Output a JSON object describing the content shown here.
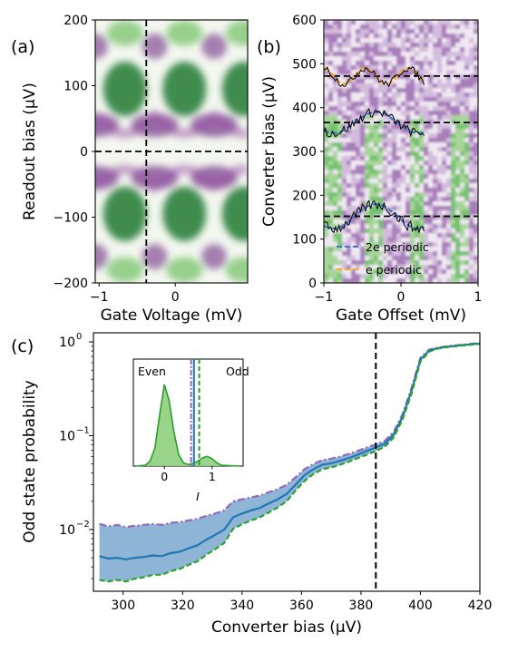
{
  "chart_data": [
    {
      "panel": "(a)",
      "type": "heatmap",
      "title": "",
      "xlabel": "Gate Voltage (mV)",
      "ylabel": "Readout bias (μV)",
      "xlim": [
        -1.05,
        0.95
      ],
      "ylim": [
        -200,
        200
      ],
      "xticks": [
        {
          "v": -1,
          "t": "−1"
        },
        {
          "v": 0,
          "t": "0"
        }
      ],
      "yticks": [
        {
          "v": 200,
          "t": "200"
        },
        {
          "v": 100,
          "t": "100"
        },
        {
          "v": 0,
          "t": "0"
        },
        {
          "v": -100,
          "t": "−100"
        },
        {
          "v": -200,
          "t": "−200"
        }
      ],
      "vline": -0.38,
      "hline": 0,
      "colormap": "PRGn",
      "colors": {
        "purple": "#8e4a9e",
        "green": "#2e8b3a",
        "line": "#000000"
      }
    },
    {
      "panel": "(b)",
      "type": "heatmap",
      "title": "",
      "xlabel": "Gate Offset (mV)",
      "ylabel": "Converter bias (μV)",
      "xlim": [
        -1,
        1
      ],
      "ylim": [
        0,
        600
      ],
      "xticks": [
        {
          "v": -1,
          "t": "−1"
        },
        {
          "v": 0,
          "t": "0"
        },
        {
          "v": 1,
          "t": "1"
        }
      ],
      "yticks": [
        {
          "v": 600,
          "t": "600"
        },
        {
          "v": 500,
          "t": "500"
        },
        {
          "v": 400,
          "t": "400"
        },
        {
          "v": 300,
          "t": "300"
        },
        {
          "v": 200,
          "t": "200"
        },
        {
          "v": 100,
          "t": "100"
        },
        {
          "v": 0,
          "t": "0"
        }
      ],
      "hlines": [
        472,
        366,
        152
      ],
      "data_extent_x": [
        -1,
        0.3
      ],
      "traces": [
        {
          "center": 472,
          "amplitude": 18,
          "fit": "e periodic"
        },
        {
          "center": 366,
          "amplitude": 24,
          "fit": "2e periodic"
        },
        {
          "center": 152,
          "amplitude": 28,
          "fit": "2e periodic"
        }
      ],
      "legend": [
        {
          "name": "2e periodic",
          "color": "#3a76c4",
          "style": "dashed"
        },
        {
          "name": "e periodic",
          "color": "#f5a623",
          "style": "dashed"
        }
      ],
      "legend_position": "lower-right",
      "colormap": "PRGn"
    },
    {
      "panel": "(c)",
      "type": "line",
      "title": "",
      "xlabel": "Converter bias (μV)",
      "ylabel": "Odd state probability",
      "xscale": "linear",
      "yscale": "log",
      "xlim": [
        290,
        420
      ],
      "ylim": [
        0.0022,
        1.25
      ],
      "xticks": [
        300,
        320,
        340,
        360,
        380,
        400,
        420
      ],
      "yticks": [
        {
          "v": 1,
          "t": "10",
          "e": "0"
        },
        {
          "v": 0.1,
          "t": "10",
          "e": "−1"
        },
        {
          "v": 0.01,
          "t": "10",
          "e": "−2"
        }
      ],
      "vline": 385,
      "x": [
        292,
        295,
        298,
        301,
        304,
        307,
        310,
        313,
        316,
        319,
        322,
        325,
        328,
        331,
        334,
        337,
        340,
        343,
        346,
        349,
        352,
        355,
        358,
        361,
        364,
        367,
        370,
        373,
        376,
        379,
        382,
        385,
        388,
        391,
        394,
        397,
        400,
        403,
        406,
        409,
        412,
        415,
        418,
        420
      ],
      "series": [
        {
          "role": "upper",
          "color": "#9467bd",
          "style": "dashdot",
          "values": [
            0.0115,
            0.0108,
            0.0112,
            0.0106,
            0.011,
            0.0112,
            0.0115,
            0.0112,
            0.0118,
            0.012,
            0.0125,
            0.013,
            0.014,
            0.0148,
            0.016,
            0.02,
            0.021,
            0.022,
            0.023,
            0.025,
            0.027,
            0.03,
            0.036,
            0.044,
            0.05,
            0.055,
            0.057,
            0.06,
            0.064,
            0.069,
            0.075,
            0.081,
            0.088,
            0.11,
            0.17,
            0.32,
            0.68,
            0.83,
            0.87,
            0.9,
            0.92,
            0.94,
            0.96,
            0.97
          ]
        },
        {
          "role": "mean",
          "color": "#1f77b4",
          "style": "solid",
          "values": [
            0.0052,
            0.0049,
            0.005,
            0.0048,
            0.005,
            0.0051,
            0.0053,
            0.0052,
            0.0056,
            0.0058,
            0.0063,
            0.0068,
            0.0078,
            0.0088,
            0.01,
            0.0135,
            0.0148,
            0.016,
            0.017,
            0.019,
            0.021,
            0.024,
            0.03,
            0.038,
            0.044,
            0.049,
            0.051,
            0.054,
            0.058,
            0.063,
            0.069,
            0.075,
            0.082,
            0.103,
            0.16,
            0.3,
            0.65,
            0.81,
            0.86,
            0.89,
            0.91,
            0.93,
            0.95,
            0.96
          ]
        },
        {
          "role": "lower",
          "color": "#2ca02c",
          "style": "dashed",
          "values": [
            0.0029,
            0.0028,
            0.0029,
            0.0028,
            0.003,
            0.0031,
            0.0033,
            0.0033,
            0.0036,
            0.0038,
            0.0042,
            0.0046,
            0.0054,
            0.0062,
            0.0072,
            0.0102,
            0.0114,
            0.0125,
            0.0135,
            0.0152,
            0.0172,
            0.02,
            0.026,
            0.033,
            0.039,
            0.044,
            0.046,
            0.049,
            0.053,
            0.058,
            0.063,
            0.069,
            0.076,
            0.096,
            0.15,
            0.28,
            0.62,
            0.79,
            0.85,
            0.88,
            0.9,
            0.92,
            0.94,
            0.95
          ]
        }
      ],
      "band_color": "#7aa7cf",
      "inset": {
        "type": "area",
        "xlabel": "I",
        "ylabel": "",
        "xlim": [
          -0.65,
          1.65
        ],
        "xticks": [
          {
            "v": 0,
            "t": "0"
          },
          {
            "v": 1,
            "t": "1"
          }
        ],
        "annotations": [
          "Even",
          "Odd"
        ],
        "x": [
          -0.6,
          -0.4,
          -0.3,
          -0.2,
          -0.1,
          0,
          0.1,
          0.2,
          0.3,
          0.4,
          0.5,
          0.6,
          0.7,
          0.8,
          0.9,
          1.0,
          1.1,
          1.2,
          1.6
        ],
        "values": [
          0,
          0.01,
          0.06,
          0.22,
          0.62,
          1.0,
          0.8,
          0.42,
          0.14,
          0.04,
          0.02,
          0.03,
          0.06,
          0.1,
          0.12,
          0.09,
          0.04,
          0.01,
          0
        ],
        "vlines": [
          {
            "v": 0.56,
            "color": "#9467bd",
            "style": "dashdot"
          },
          {
            "v": 0.62,
            "color": "#1f77b4",
            "style": "solid"
          },
          {
            "v": 0.73,
            "color": "#2ca02c",
            "style": "dashed"
          }
        ],
        "fill_color": "#8fcf7e",
        "line_color": "#2ca02c"
      }
    }
  ]
}
